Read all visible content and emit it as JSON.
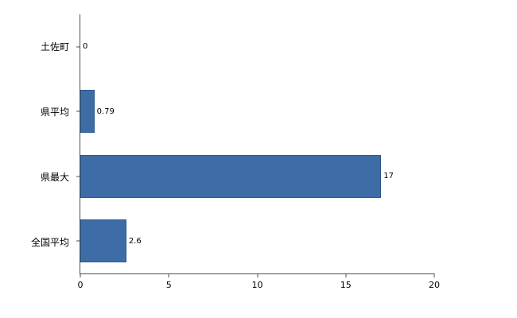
{
  "chart_data": {
    "type": "bar",
    "orientation": "horizontal",
    "title": "",
    "xlabel": "",
    "ylabel": "",
    "categories": [
      "土佐町",
      "県平均",
      "県最大",
      "全国平均"
    ],
    "values": [
      0,
      0.79,
      17,
      2.6
    ],
    "value_labels": [
      "0",
      "0.79",
      "17",
      "2.6"
    ],
    "xlim": [
      0,
      20
    ],
    "x_ticks": [
      "0",
      "5",
      "10",
      "15",
      "20"
    ],
    "x_tick_values": [
      0,
      5,
      10,
      15,
      20
    ],
    "grid": false,
    "legend": "none",
    "bar_color": "#3d6ca6",
    "bar_border_color": "#2e5a8c",
    "axis_color": "#4d4d4d",
    "background": "#ffffff"
  }
}
